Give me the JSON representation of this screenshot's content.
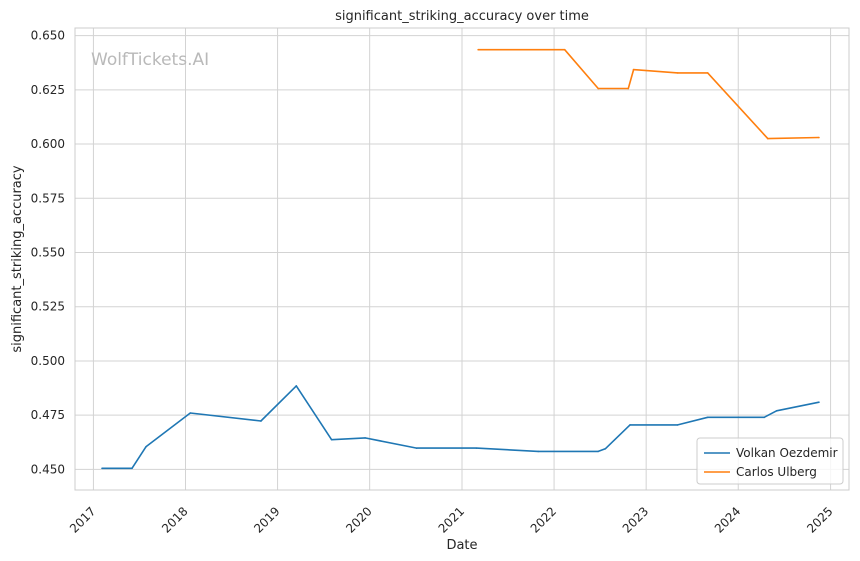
{
  "chart_data": {
    "type": "line",
    "title": "significant_striking_accuracy over time",
    "xlabel": "Date",
    "ylabel": "significant_striking_accuracy",
    "watermark": "WolfTickets.AI",
    "x_ticks": [
      "2017",
      "2018",
      "2019",
      "2020",
      "2021",
      "2022",
      "2023",
      "2024",
      "2025"
    ],
    "y_ticks": [
      "0.450",
      "0.475",
      "0.500",
      "0.525",
      "0.550",
      "0.575",
      "0.600",
      "0.625",
      "0.650"
    ],
    "xlim": [
      "2016-10-20",
      "2025-03-15"
    ],
    "ylim": [
      0.4405,
      0.6535
    ],
    "grid": true,
    "legend_position": "lower-right",
    "series": [
      {
        "name": "Volkan Oezdemir",
        "color": "#1f77b4",
        "points": [
          [
            "2017-02-04",
            0.4505
          ],
          [
            "2017-06-03",
            0.4505
          ],
          [
            "2017-07-29",
            0.4605
          ],
          [
            "2018-01-20",
            0.476
          ],
          [
            "2018-10-27",
            0.4723
          ],
          [
            "2019-03-16",
            0.4885
          ],
          [
            "2019-08-03",
            0.4637
          ],
          [
            "2019-12-14",
            0.4645
          ],
          [
            "2020-07-05",
            0.4598
          ],
          [
            "2021-02-27",
            0.4598
          ],
          [
            "2021-10-30",
            0.4583
          ],
          [
            "2022-06-25",
            0.4583
          ],
          [
            "2022-07-23",
            0.4595
          ],
          [
            "2022-10-29",
            0.4705
          ],
          [
            "2023-05-06",
            0.4705
          ],
          [
            "2023-09-02",
            0.474
          ],
          [
            "2024-04-13",
            0.474
          ],
          [
            "2024-06-01",
            0.477
          ],
          [
            "2024-11-16",
            0.481
          ]
        ]
      },
      {
        "name": "Carlos Ulberg",
        "color": "#ff7f0e",
        "points": [
          [
            "2021-03-06",
            0.6435
          ],
          [
            "2022-02-12",
            0.6435
          ],
          [
            "2022-06-25",
            0.6256
          ],
          [
            "2022-10-22",
            0.6256
          ],
          [
            "2022-11-12",
            0.6343
          ],
          [
            "2023-05-06",
            0.6328
          ],
          [
            "2023-09-02",
            0.6328
          ],
          [
            "2024-04-27",
            0.6025
          ],
          [
            "2024-11-16",
            0.603
          ]
        ]
      }
    ]
  }
}
